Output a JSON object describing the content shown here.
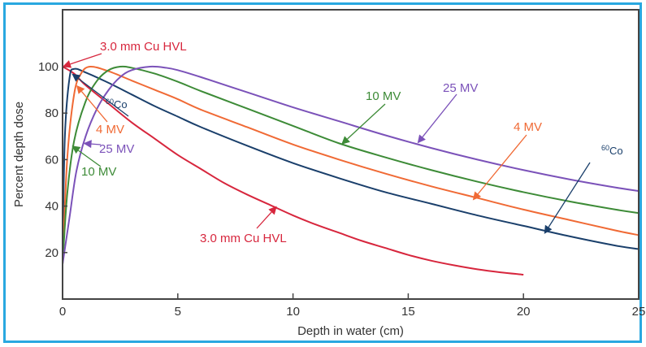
{
  "chart_data": {
    "type": "line",
    "title": "",
    "xlabel": "Depth in water (cm)",
    "ylabel": "Percent depth dose",
    "xlim": [
      0,
      25
    ],
    "ylim": [
      0,
      112
    ],
    "xticks": [
      0,
      5,
      10,
      15,
      20,
      25
    ],
    "yticks": [
      20,
      40,
      60,
      80,
      100
    ],
    "grid": false,
    "legend": "none (inline annotations with arrows)",
    "series": [
      {
        "name": "3.0 mm Cu HVL",
        "color": "#d7263d",
        "x": [
          0,
          0.5,
          1,
          2,
          3,
          4,
          5,
          6,
          7,
          8,
          9,
          10,
          11,
          12,
          13,
          14,
          15,
          16,
          17,
          18,
          19,
          20
        ],
        "y": [
          100,
          97,
          92,
          84,
          76,
          69,
          62,
          56,
          50,
          45,
          40.5,
          36,
          32,
          28.5,
          25,
          22,
          19,
          16.5,
          14.5,
          12.8,
          11.5,
          10.5
        ]
      },
      {
        "name": "60Co",
        "color": "#1a3f6b",
        "x": [
          0,
          0.1,
          0.3,
          0.5,
          1,
          2,
          3,
          4,
          5,
          6,
          8,
          10,
          12,
          14,
          16,
          18,
          20,
          22,
          24,
          25
        ],
        "y": [
          20,
          70,
          95,
          99,
          97.5,
          93,
          88,
          83,
          78.5,
          74,
          66,
          58.5,
          52,
          46,
          41,
          36,
          31.5,
          27,
          23,
          21.5
        ]
      },
      {
        "name": "4 MV",
        "color": "#f06a35",
        "x": [
          0,
          0.2,
          0.5,
          0.8,
          1.2,
          2,
          3,
          4,
          5,
          6,
          8,
          10,
          12,
          14,
          16,
          18,
          20,
          22,
          24,
          25
        ],
        "y": [
          15,
          60,
          88,
          97,
          100,
          98,
          94,
          90,
          86,
          81.5,
          74,
          66.5,
          60,
          54,
          48.5,
          43.5,
          38.5,
          34,
          29.5,
          27.5
        ]
      },
      {
        "name": "10 MV",
        "color": "#3d8b37",
        "x": [
          0,
          0.2,
          0.5,
          1,
          1.5,
          2,
          2.5,
          3,
          4,
          5,
          6,
          8,
          10,
          12,
          14,
          16,
          18,
          20,
          22,
          24,
          25
        ],
        "y": [
          15,
          45,
          68,
          85,
          94,
          98.5,
          100,
          99.5,
          97,
          93.5,
          89.5,
          82,
          74.5,
          67,
          61,
          55.5,
          50.5,
          46,
          42,
          38.5,
          37
        ]
      },
      {
        "name": "25 MV",
        "color": "#7b52b9",
        "x": [
          0,
          0.3,
          0.6,
          1,
          1.5,
          2,
          2.5,
          3,
          3.8,
          4.5,
          5,
          6,
          8,
          10,
          12,
          14,
          16,
          18,
          20,
          22,
          24,
          25
        ],
        "y": [
          15,
          35,
          55,
          70,
          82,
          90,
          95.5,
          98.5,
          100,
          99.5,
          98.5,
          95.5,
          89,
          82.5,
          76.5,
          70.5,
          65,
          60,
          55.5,
          51.5,
          48,
          46.5
        ]
      }
    ],
    "annotations": [
      {
        "text": "3.0 mm Cu HVL",
        "series": "3.0 mm Cu HVL",
        "color": "#d7263d",
        "points_to": [
          0,
          100
        ]
      },
      {
        "text": "3.0 mm Cu HVL",
        "series": "3.0 mm Cu HVL",
        "color": "#d7263d",
        "points_to": [
          9.3,
          40
        ]
      },
      {
        "text": "60Co",
        "series": "60Co",
        "color": "#1a3f6b",
        "points_to": [
          0.4,
          97
        ]
      },
      {
        "text": "60Co",
        "series": "60Co",
        "color": "#1a3f6b",
        "points_to": [
          20.9,
          28
        ]
      },
      {
        "text": "4 MV",
        "series": "4 MV",
        "color": "#f06a35",
        "points_to": [
          0.6,
          92
        ]
      },
      {
        "text": "4 MV",
        "series": "4 MV",
        "color": "#f06a35",
        "points_to": [
          17.8,
          42.5
        ]
      },
      {
        "text": "25 MV",
        "series": "25 MV",
        "color": "#7b52b9",
        "points_to": [
          0.9,
          67
        ]
      },
      {
        "text": "25 MV",
        "series": "25 MV",
        "color": "#7b52b9",
        "points_to": [
          15.4,
          67
        ]
      },
      {
        "text": "10 MV",
        "series": "10 MV",
        "color": "#3d8b37",
        "points_to": [
          0.4,
          66
        ]
      },
      {
        "text": "10 MV",
        "series": "10 MV",
        "color": "#3d8b37",
        "points_to": [
          12.1,
          66.5
        ]
      }
    ]
  }
}
